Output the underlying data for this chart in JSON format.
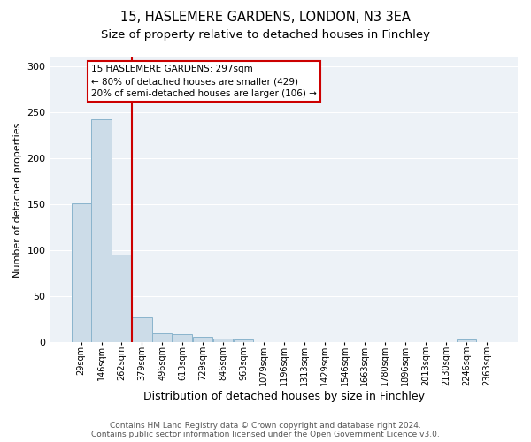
{
  "title1": "15, HASLEMERE GARDENS, LONDON, N3 3EA",
  "title2": "Size of property relative to detached houses in Finchley",
  "xlabel": "Distribution of detached houses by size in Finchley",
  "ylabel": "Number of detached properties",
  "footnote1": "Contains HM Land Registry data © Crown copyright and database right 2024.",
  "footnote2": "Contains public sector information licensed under the Open Government Licence v3.0.",
  "bin_labels": [
    "29sqm",
    "146sqm",
    "262sqm",
    "379sqm",
    "496sqm",
    "613sqm",
    "729sqm",
    "846sqm",
    "963sqm",
    "1079sqm",
    "1196sqm",
    "1313sqm",
    "1429sqm",
    "1546sqm",
    "1663sqm",
    "1780sqm",
    "1896sqm",
    "2013sqm",
    "2130sqm",
    "2246sqm",
    "2363sqm"
  ],
  "bar_values": [
    151,
    243,
    95,
    27,
    9,
    8,
    6,
    4,
    3,
    0,
    0,
    0,
    0,
    0,
    0,
    0,
    0,
    0,
    0,
    3,
    0
  ],
  "bar_color": "#ccdce8",
  "bar_edge_color": "#8ab4cc",
  "vline_color": "#cc0000",
  "annotation_text": "15 HASLEMERE GARDENS: 297sqm\n← 80% of detached houses are smaller (429)\n20% of semi-detached houses are larger (106) →",
  "annotation_box_color": "#ffffff",
  "annotation_box_edge": "#cc0000",
  "ylim": [
    0,
    310
  ],
  "yticks": [
    0,
    50,
    100,
    150,
    200,
    250,
    300
  ],
  "background_color": "#ffffff",
  "plot_bg_color": "#edf2f7",
  "grid_color": "#ffffff",
  "title1_fontsize": 10.5,
  "title2_fontsize": 9.5,
  "xlabel_fontsize": 9,
  "ylabel_fontsize": 8,
  "tick_fontsize": 7,
  "footnote_fontsize": 6.5,
  "annotation_fontsize": 7.5
}
